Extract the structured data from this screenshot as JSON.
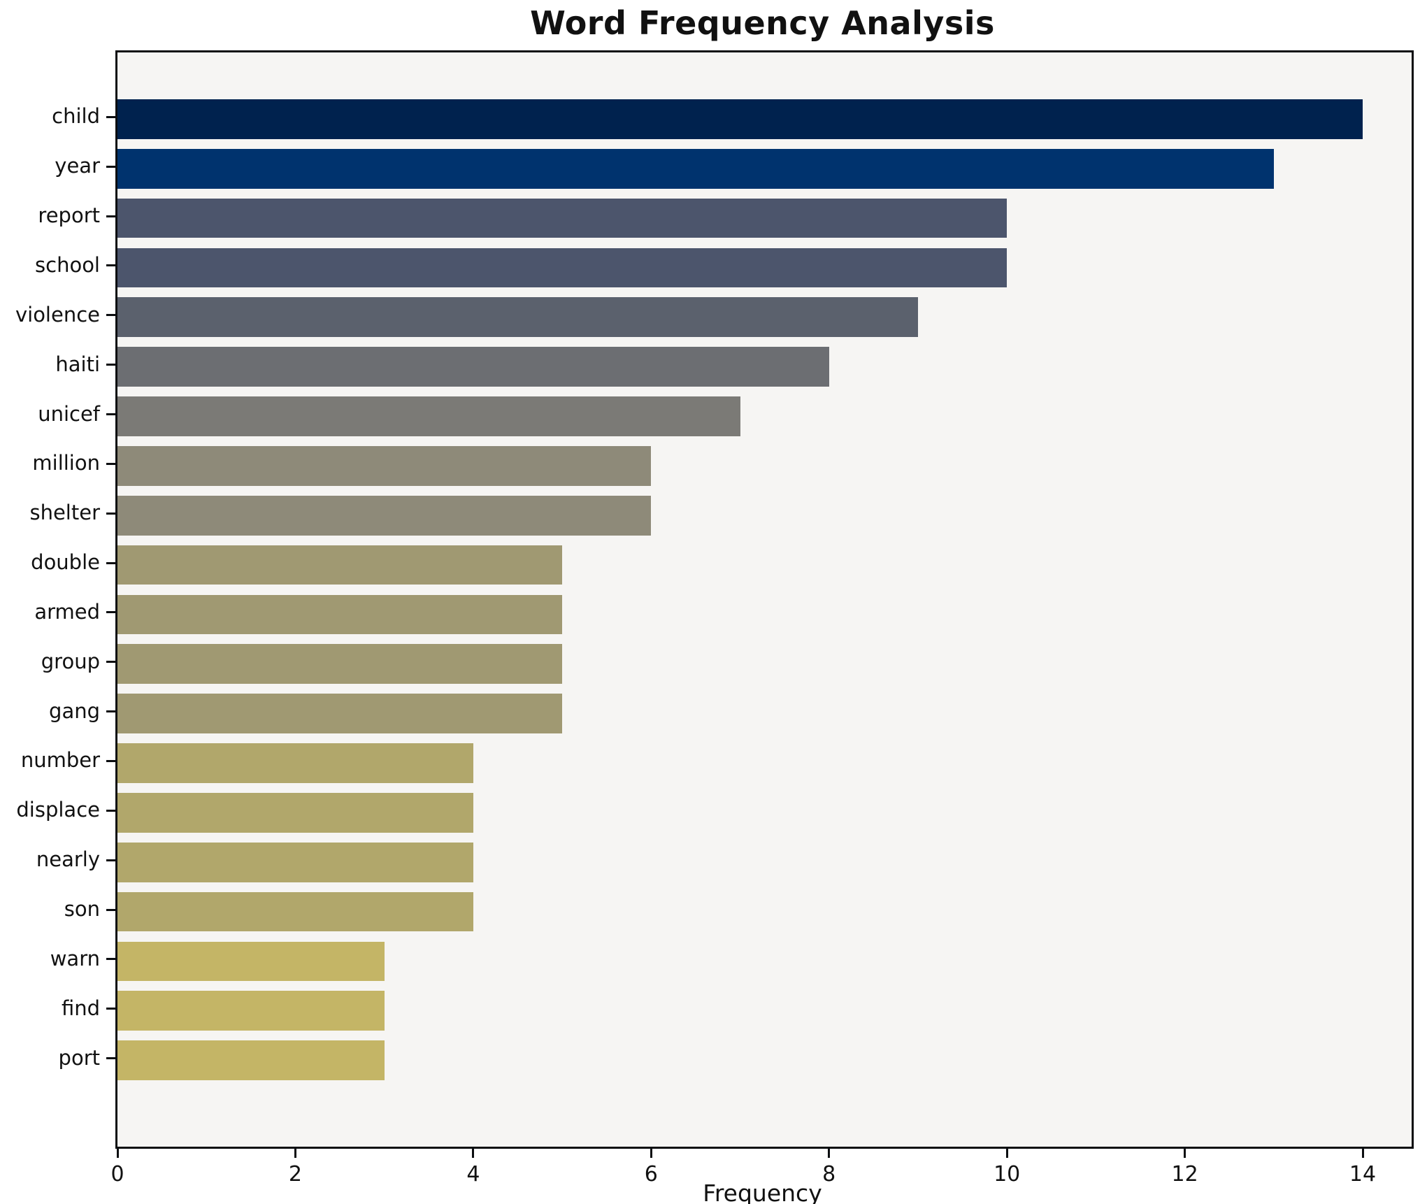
{
  "chart_data": {
    "type": "bar",
    "orientation": "horizontal",
    "title": "Word Frequency Analysis",
    "xlabel": "Frequency",
    "ylabel": "",
    "categories": [
      "child",
      "year",
      "report",
      "school",
      "violence",
      "haiti",
      "unicef",
      "million",
      "shelter",
      "double",
      "armed",
      "group",
      "gang",
      "number",
      "displace",
      "nearly",
      "son",
      "warn",
      "find",
      "port"
    ],
    "values": [
      14,
      13,
      10,
      10,
      9,
      8,
      7,
      6,
      6,
      5,
      5,
      5,
      5,
      4,
      4,
      4,
      4,
      3,
      3,
      3
    ],
    "bar_colors": [
      "#00224e",
      "#00336e",
      "#4c556c",
      "#4c556c",
      "#5b616d",
      "#6c6e72",
      "#7b7a76",
      "#8e8a79",
      "#8e8a79",
      "#a09972",
      "#a09972",
      "#a09972",
      "#a09972",
      "#b1a76b",
      "#b1a76b",
      "#b1a76b",
      "#b1a76b",
      "#c4b566",
      "#c4b566",
      "#c4b566"
    ],
    "xlim": [
      0,
      14.55
    ],
    "x_ticks": [
      0,
      2,
      4,
      6,
      8,
      10,
      12,
      14
    ],
    "grid": false,
    "legend": false,
    "plot_background": "#f6f5f3",
    "spine_color": "#0c0e11"
  }
}
